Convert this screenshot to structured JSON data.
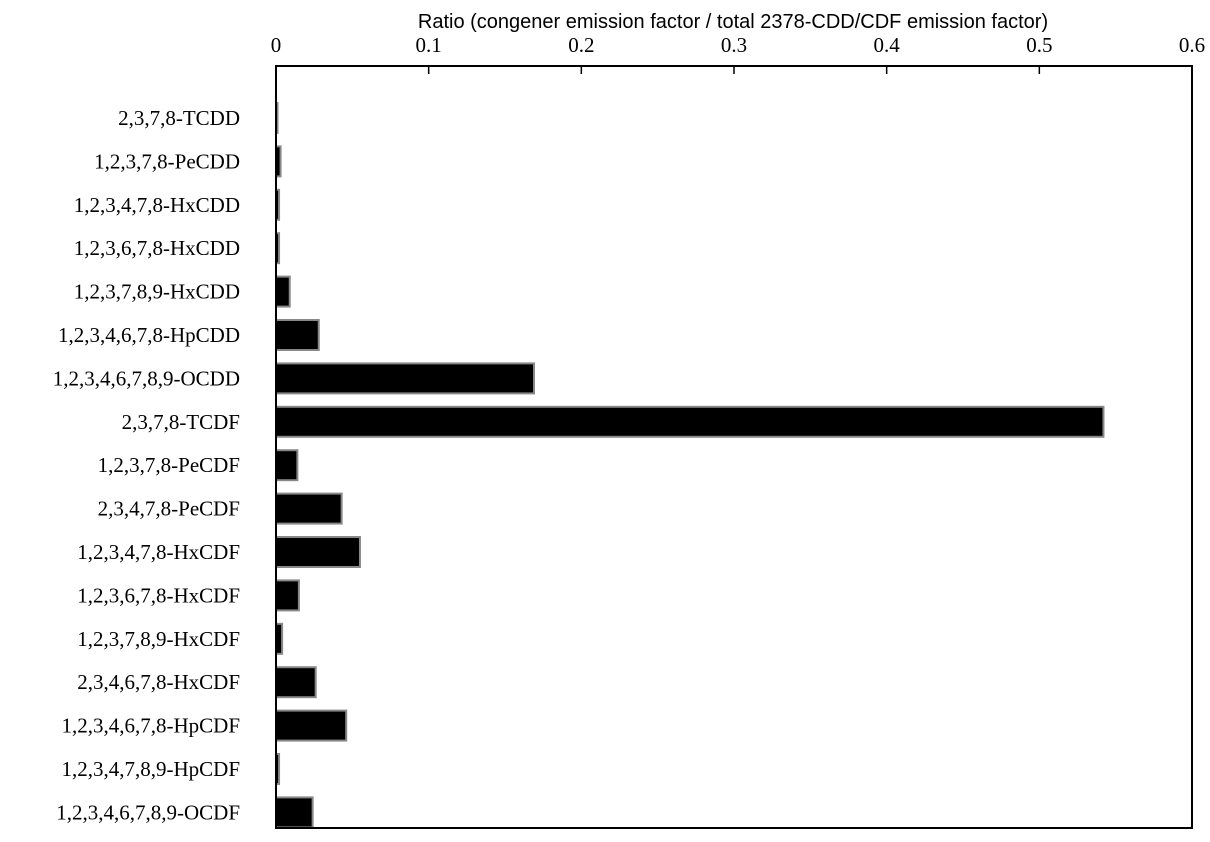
{
  "chart_data": {
    "type": "bar",
    "orientation": "horizontal",
    "xlabel": "Ratio (congener emission factor / total 2378-CDD/CDF emission factor)",
    "xlabel_position": "top",
    "xlim": [
      0,
      0.6
    ],
    "xticks": [
      "0",
      "0.1",
      "0.2",
      "0.3",
      "0.4",
      "0.5",
      "0.6"
    ],
    "grid": false,
    "legend": "none",
    "bar_color": "#000000",
    "categories": [
      "2,3,7,8-TCDD",
      "1,2,3,7,8-PeCDD",
      "1,2,3,4,7,8-HxCDD",
      "1,2,3,6,7,8-HxCDD",
      "1,2,3,7,8,9-HxCDD",
      "1,2,3,4,6,7,8-HpCDD",
      "1,2,3,4,6,7,8,9-OCDD",
      "2,3,7,8-TCDF",
      "1,2,3,7,8-PeCDF",
      "2,3,4,7,8-PeCDF",
      "1,2,3,4,7,8-HxCDF",
      "1,2,3,6,7,8-HxCDF",
      "1,2,3,7,8,9-HxCDF",
      "2,3,4,6,7,8-HxCDF",
      "1,2,3,4,6,7,8-HpCDF",
      "1,2,3,4,7,8,9-HpCDF",
      "1,2,3,4,6,7,8,9-OCDF"
    ],
    "values": [
      0.001,
      0.003,
      0.002,
      0.002,
      0.009,
      0.028,
      0.169,
      0.542,
      0.014,
      0.043,
      0.055,
      0.015,
      0.004,
      0.026,
      0.046,
      0.002,
      0.024
    ]
  }
}
